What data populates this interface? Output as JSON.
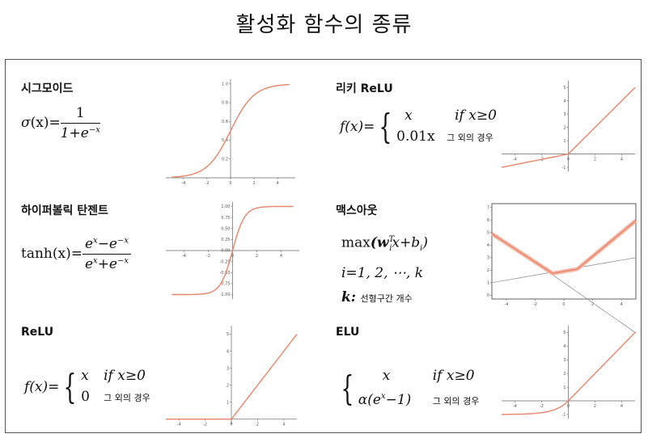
{
  "title": "활성화 함수의 종류",
  "functions": [
    {
      "name": "시그모이드",
      "f1": "σ",
      "f2": "(x)=",
      "num": "1",
      "den": "1+e",
      "den_exp": "−x"
    },
    {
      "name": "리키 ReLU",
      "lhs": "f(x)=",
      "r1a": "x",
      "r1b": "if x≥0",
      "r2a": "0.01x",
      "r2b": "그 외의 경우"
    },
    {
      "name": "하이퍼볼릭 탄젠트",
      "lhs_a": "tanh",
      "lhs_b": "(x)=",
      "num_a": "e",
      "num_exp1": "x",
      "num_b": "−e",
      "num_exp2": "−x",
      "den_a": "e",
      "den_exp1": "x",
      "den_b": "+e",
      "den_exp2": "−x"
    },
    {
      "name": "맥스아웃",
      "l1a": "max",
      "l1b": "(w",
      "l1sub": "i",
      "l1sup": "T",
      "l1c": "x+b",
      "l1sub2": "i",
      "l1d": ")",
      "l2": "i=1, 2, ⋯, k",
      "l3a": "k:",
      "l3b": "선형구간 개수"
    },
    {
      "name": "ReLU",
      "lhs": "f(x)=",
      "r1a": "x",
      "r1b": "if x≥0",
      "r2a": "0",
      "r2b": "그 외의 경우"
    },
    {
      "name": "ELU",
      "r1a": "x",
      "r1b": "if x≥0",
      "r2a_1": "α(e",
      "r2a_exp": "x",
      "r2a_2": "−1)",
      "r2b": "그 외의 경우"
    }
  ],
  "chart_data": [
    {
      "type": "line",
      "name": "sigmoid",
      "xticks": [
        "-4",
        "-2",
        "0",
        "2",
        "4"
      ],
      "yticks": [
        "0.2",
        "0.4",
        "0.6",
        "0.8",
        "1.0"
      ],
      "xlim": [
        -5.5,
        5.5
      ],
      "ylim": [
        0,
        1.05
      ],
      "color": "#e8846a"
    },
    {
      "type": "line",
      "name": "leaky_relu",
      "xticks": [
        "-4",
        "-2",
        "0",
        "2",
        "4"
      ],
      "yticks": [
        "-1",
        "1",
        "2",
        "3",
        "4",
        "5"
      ],
      "xlim": [
        -5,
        5
      ],
      "ylim": [
        -1.3,
        5.5
      ],
      "color": "#e8846a"
    },
    {
      "type": "line",
      "name": "tanh",
      "xticks": [
        "-4",
        "-2",
        "0",
        "2",
        "4"
      ],
      "yticks": [
        "-1.00",
        "-0.75",
        "-0.50",
        "-0.25",
        "0.00",
        "0.25",
        "0.50",
        "0.75",
        "1.00"
      ],
      "xlim": [
        -5.5,
        5.5
      ],
      "ylim": [
        -1.1,
        1.1
      ],
      "color": "#e8846a"
    },
    {
      "type": "line",
      "name": "maxout",
      "xticks": [
        "-4",
        "-2",
        "0",
        "2",
        "4"
      ],
      "yticks": [
        "0",
        "1",
        "2",
        "3",
        "4",
        "5",
        "6",
        "7"
      ],
      "xlim": [
        -5,
        5
      ],
      "ylim": [
        -0.3,
        7.3
      ],
      "color": "#e8846a"
    },
    {
      "type": "line",
      "name": "relu",
      "xticks": [
        "-4",
        "-2",
        "0",
        "2",
        "4"
      ],
      "yticks": [
        "1",
        "2",
        "3",
        "4",
        "5"
      ],
      "xlim": [
        -5,
        5
      ],
      "ylim": [
        -0.3,
        5.5
      ],
      "color": "#e8846a"
    },
    {
      "type": "line",
      "name": "elu",
      "xticks": [
        "-4",
        "-2",
        "0",
        "2",
        "4"
      ],
      "yticks": [
        "-1",
        "1",
        "2",
        "3",
        "4",
        "5"
      ],
      "xlim": [
        -5,
        5
      ],
      "ylim": [
        -1.3,
        5.5
      ],
      "color": "#e8846a"
    }
  ]
}
